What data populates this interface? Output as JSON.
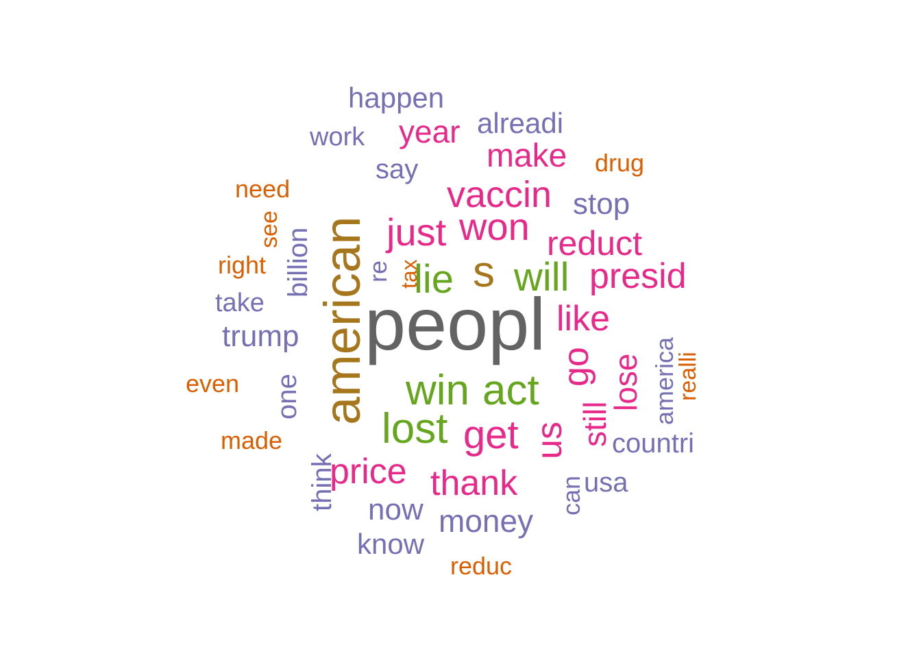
{
  "palette": {
    "gray": "#636363",
    "olive": "#A6761D",
    "green": "#66A61E",
    "pink": "#E7298A",
    "purple": "#7570B3",
    "orange": "#D95F02"
  },
  "words": [
    {
      "text": "peopl",
      "color": "gray",
      "rotated": false
    },
    {
      "text": "american",
      "color": "olive",
      "rotated": true
    },
    {
      "text": "s",
      "color": "olive",
      "rotated": false
    },
    {
      "text": "win",
      "color": "green",
      "rotated": false
    },
    {
      "text": "act",
      "color": "green",
      "rotated": false
    },
    {
      "text": "lost",
      "color": "green",
      "rotated": false
    },
    {
      "text": "lie",
      "color": "green",
      "rotated": false
    },
    {
      "text": "will",
      "color": "green",
      "rotated": false
    },
    {
      "text": "just",
      "color": "pink",
      "rotated": false
    },
    {
      "text": "won",
      "color": "pink",
      "rotated": false
    },
    {
      "text": "vaccin",
      "color": "pink",
      "rotated": false
    },
    {
      "text": "get",
      "color": "pink",
      "rotated": false
    },
    {
      "text": "us",
      "color": "pink",
      "rotated": true
    },
    {
      "text": "go",
      "color": "pink",
      "rotated": true
    },
    {
      "text": "price",
      "color": "pink",
      "rotated": false
    },
    {
      "text": "thank",
      "color": "pink",
      "rotated": false
    },
    {
      "text": "presid",
      "color": "pink",
      "rotated": false
    },
    {
      "text": "reduct",
      "color": "pink",
      "rotated": false
    },
    {
      "text": "like",
      "color": "pink",
      "rotated": false
    },
    {
      "text": "make",
      "color": "pink",
      "rotated": false
    },
    {
      "text": "year",
      "color": "pink",
      "rotated": false
    },
    {
      "text": "lose",
      "color": "pink",
      "rotated": true
    },
    {
      "text": "still",
      "color": "pink",
      "rotated": true
    },
    {
      "text": "money",
      "color": "purple",
      "rotated": false
    },
    {
      "text": "now",
      "color": "purple",
      "rotated": false
    },
    {
      "text": "trump",
      "color": "purple",
      "rotated": false
    },
    {
      "text": "happen",
      "color": "purple",
      "rotated": false
    },
    {
      "text": "alreadi",
      "color": "purple",
      "rotated": false
    },
    {
      "text": "stop",
      "color": "purple",
      "rotated": false
    },
    {
      "text": "say",
      "color": "purple",
      "rotated": false
    },
    {
      "text": "work",
      "color": "purple",
      "rotated": false
    },
    {
      "text": "countri",
      "color": "purple",
      "rotated": false
    },
    {
      "text": "know",
      "color": "purple",
      "rotated": false
    },
    {
      "text": "usa",
      "color": "purple",
      "rotated": false
    },
    {
      "text": "take",
      "color": "purple",
      "rotated": false
    },
    {
      "text": "billion",
      "color": "purple",
      "rotated": true
    },
    {
      "text": "one",
      "color": "purple",
      "rotated": true
    },
    {
      "text": "think",
      "color": "purple",
      "rotated": true
    },
    {
      "text": "can",
      "color": "purple",
      "rotated": true
    },
    {
      "text": "america",
      "color": "purple",
      "rotated": true
    },
    {
      "text": "re",
      "color": "purple",
      "rotated": true
    },
    {
      "text": "need",
      "color": "orange",
      "rotated": false
    },
    {
      "text": "right",
      "color": "orange",
      "rotated": false
    },
    {
      "text": "even",
      "color": "orange",
      "rotated": false
    },
    {
      "text": "made",
      "color": "orange",
      "rotated": false
    },
    {
      "text": "drug",
      "color": "orange",
      "rotated": false
    },
    {
      "text": "reduc",
      "color": "orange",
      "rotated": false
    },
    {
      "text": "see",
      "color": "orange",
      "rotated": true
    },
    {
      "text": "tax",
      "color": "orange",
      "rotated": true
    },
    {
      "text": "realli",
      "color": "orange",
      "rotated": true
    }
  ]
}
